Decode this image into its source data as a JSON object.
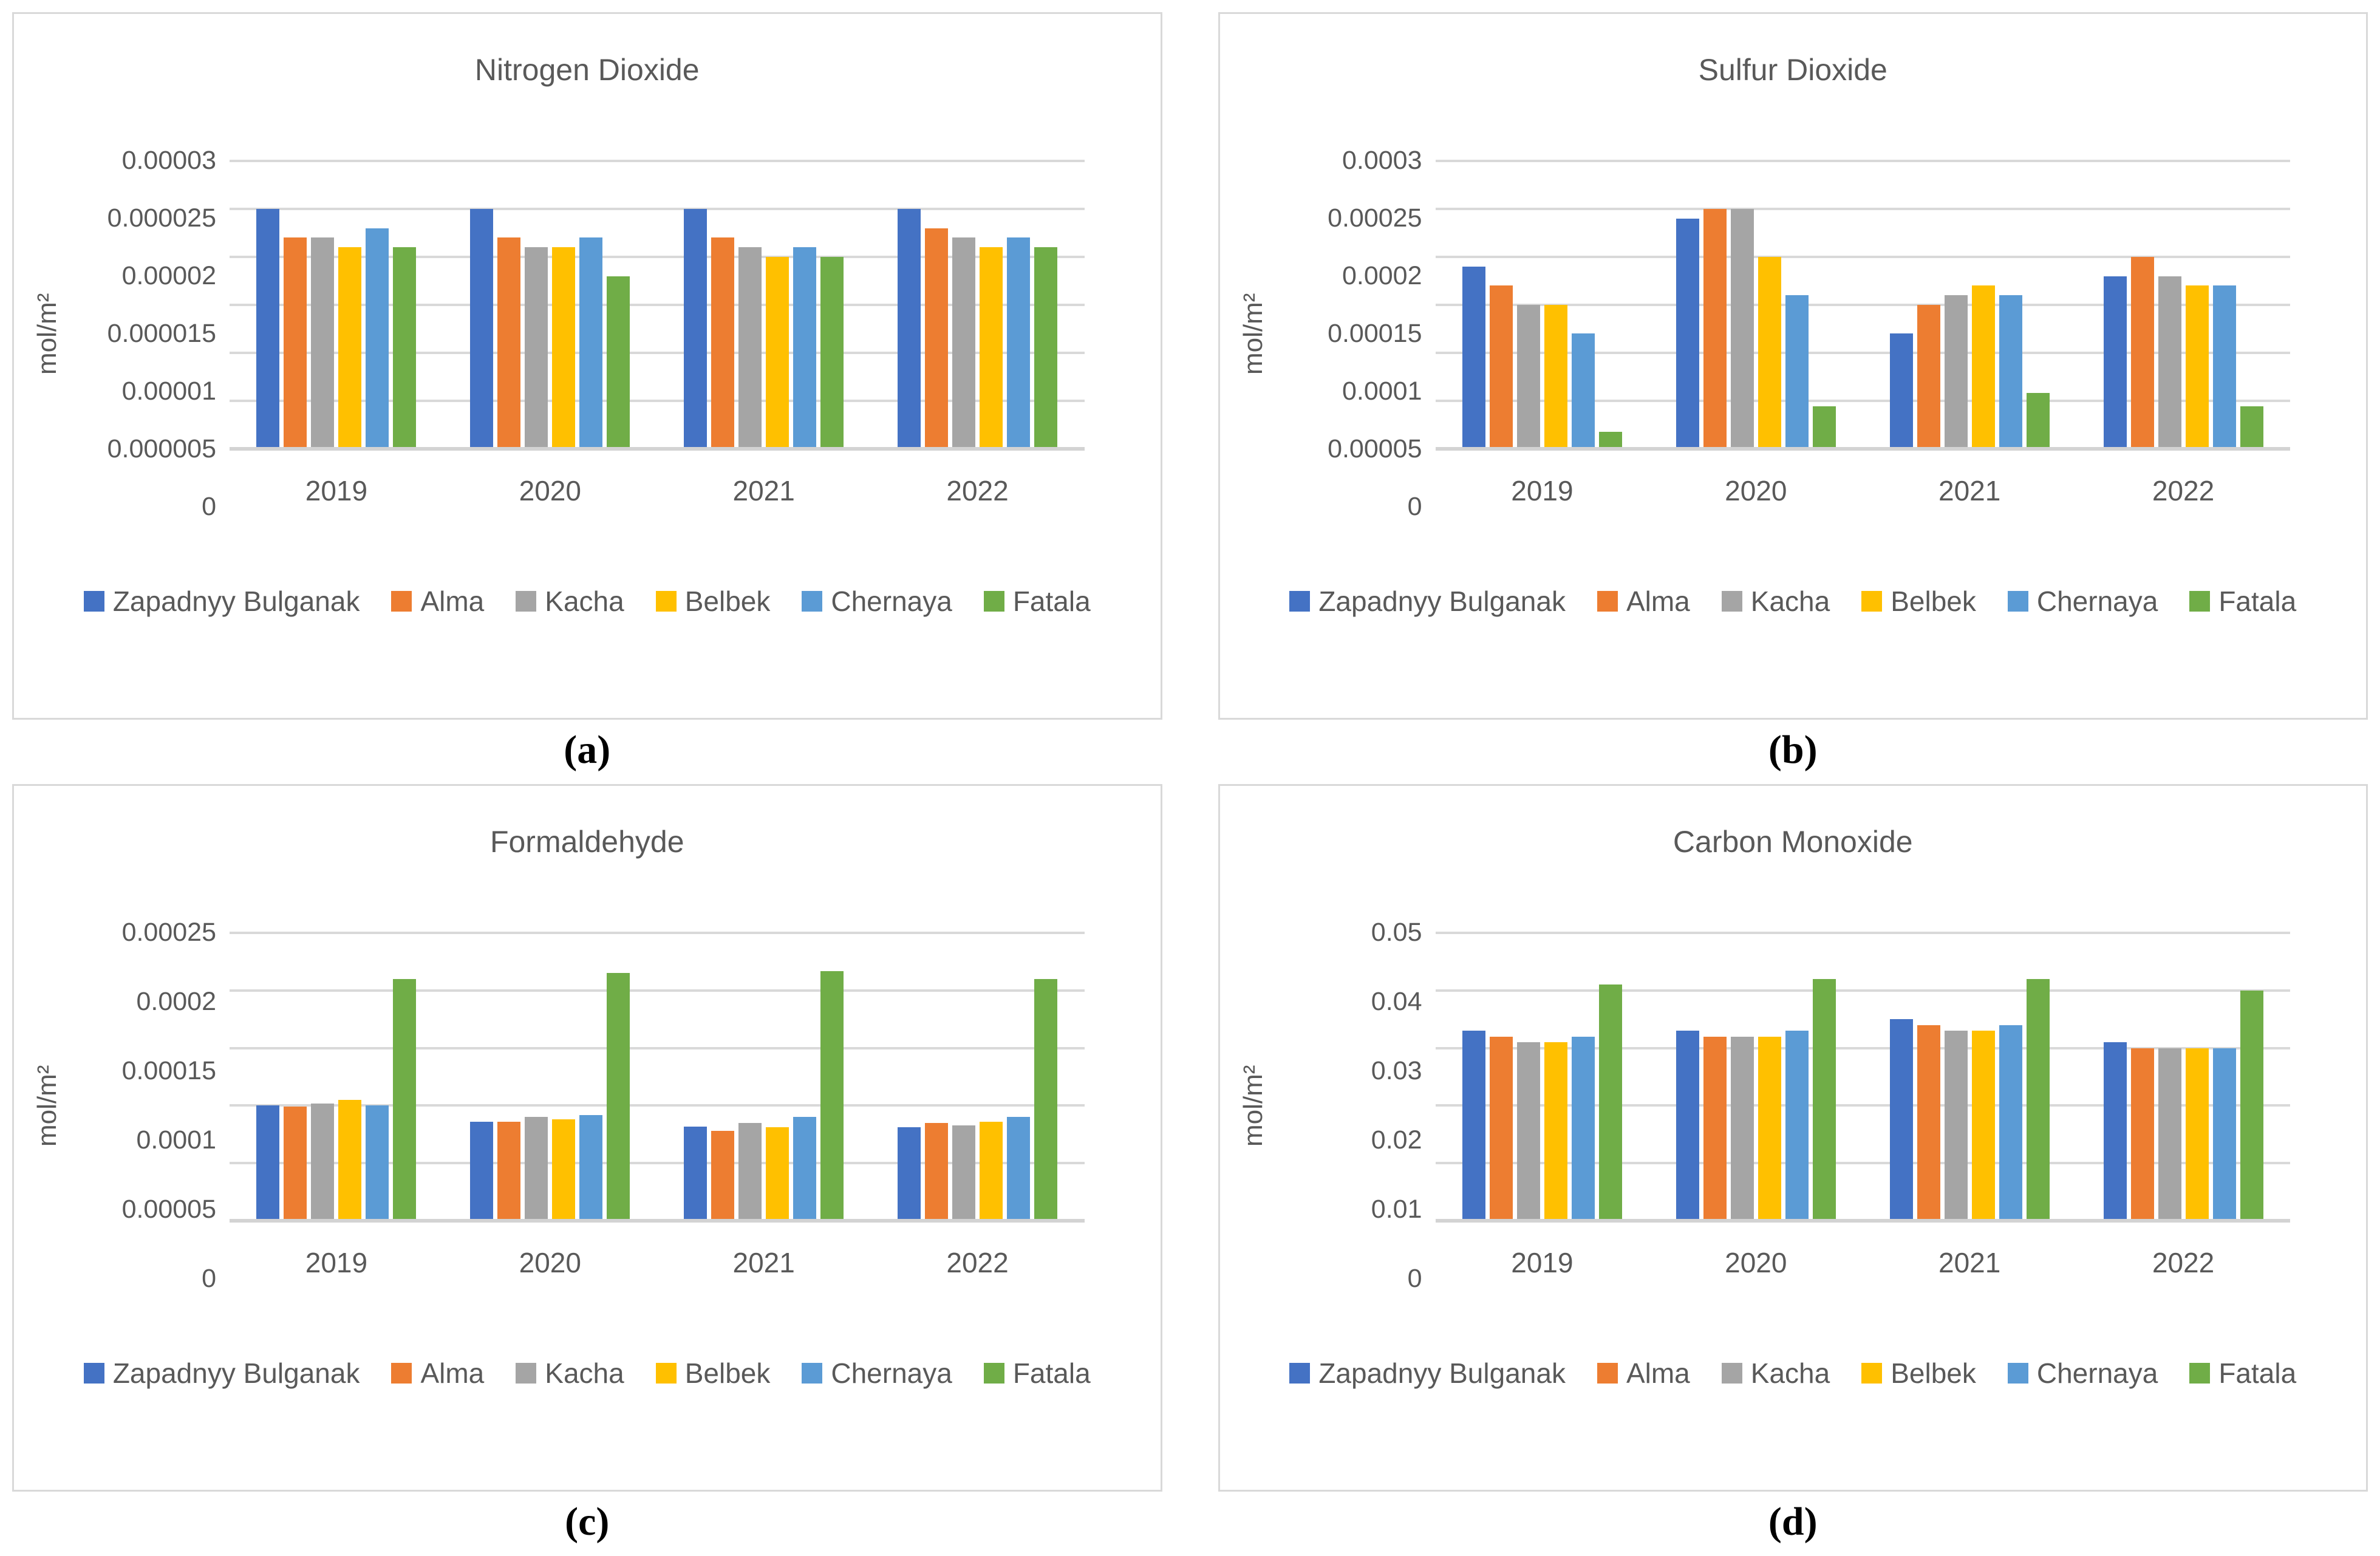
{
  "chart_data": [
    {
      "type": "bar",
      "title": "Nitrogen Dioxide",
      "caption": "(a)",
      "ylabel": "mol/m²",
      "xlabel": "",
      "categories": [
        "2019",
        "2020",
        "2021",
        "2022"
      ],
      "ylim": [
        0,
        3e-05
      ],
      "yticks": [
        0,
        5e-06,
        1e-05,
        1.5e-05,
        2e-05,
        2.5e-05,
        3e-05
      ],
      "ytick_labels": [
        "0",
        "0.000005",
        "0.00001",
        "0.000015",
        "0.00002",
        "0.000025",
        "0.00003"
      ],
      "grid": true,
      "legend_position": "bottom",
      "series": [
        {
          "name": "Zapadnyy Bulganak",
          "color": "#4472C4",
          "values": [
            2.5e-05,
            2.5e-05,
            2.5e-05,
            2.5e-05
          ]
        },
        {
          "name": "Alma",
          "color": "#ED7D31",
          "values": [
            2.2e-05,
            2.2e-05,
            2.2e-05,
            2.3e-05
          ]
        },
        {
          "name": "Kacha",
          "color": "#A5A5A5",
          "values": [
            2.2e-05,
            2.1e-05,
            2.1e-05,
            2.2e-05
          ]
        },
        {
          "name": "Belbek",
          "color": "#FFC000",
          "values": [
            2.1e-05,
            2.1e-05,
            2e-05,
            2.1e-05
          ]
        },
        {
          "name": "Chernaya",
          "color": "#5B9BD5",
          "values": [
            2.3e-05,
            2.2e-05,
            2.1e-05,
            2.2e-05
          ]
        },
        {
          "name": "Fatala",
          "color": "#70AD47",
          "values": [
            2.1e-05,
            1.8e-05,
            2e-05,
            2.1e-05
          ]
        }
      ]
    },
    {
      "type": "bar",
      "title": "Sulfur Dioxide",
      "caption": "(b)",
      "ylabel": "mol/m²",
      "xlabel": "",
      "categories": [
        "2019",
        "2020",
        "2021",
        "2022"
      ],
      "ylim": [
        0,
        0.0003
      ],
      "yticks": [
        0,
        5e-05,
        0.0001,
        0.00015,
        0.0002,
        0.00025,
        0.0003
      ],
      "ytick_labels": [
        "0",
        "0.00005",
        "0.0001",
        "0.00015",
        "0.0002",
        "0.00025",
        "0.0003"
      ],
      "grid": true,
      "legend_position": "bottom",
      "series": [
        {
          "name": "Zapadnyy Bulganak",
          "color": "#4472C4",
          "values": [
            0.00019,
            0.00024,
            0.00012,
            0.00018
          ]
        },
        {
          "name": "Alma",
          "color": "#ED7D31",
          "values": [
            0.00017,
            0.00025,
            0.00015,
            0.0002
          ]
        },
        {
          "name": "Kacha",
          "color": "#A5A5A5",
          "values": [
            0.00015,
            0.00025,
            0.00016,
            0.00018
          ]
        },
        {
          "name": "Belbek",
          "color": "#FFC000",
          "values": [
            0.00015,
            0.0002,
            0.00017,
            0.00017
          ]
        },
        {
          "name": "Chernaya",
          "color": "#5B9BD5",
          "values": [
            0.00012,
            0.00016,
            0.00016,
            0.00017
          ]
        },
        {
          "name": "Fatala",
          "color": "#70AD47",
          "values": [
            1.8e-05,
            4.4e-05,
            5.8e-05,
            4.4e-05
          ]
        }
      ]
    },
    {
      "type": "bar",
      "title": "Formaldehyde",
      "caption": "(c)",
      "ylabel": "mol/m²",
      "xlabel": "",
      "categories": [
        "2019",
        "2020",
        "2021",
        "2022"
      ],
      "ylim": [
        0,
        0.00025
      ],
      "yticks": [
        0,
        5e-05,
        0.0001,
        0.00015,
        0.0002,
        0.00025
      ],
      "ytick_labels": [
        "0",
        "0.00005",
        "0.0001",
        "0.00015",
        "0.0002",
        "0.00025"
      ],
      "grid": true,
      "legend_position": "bottom",
      "series": [
        {
          "name": "Zapadnyy Bulganak",
          "color": "#4472C4",
          "values": [
            0.0001,
            8.6e-05,
            8.2e-05,
            8.1e-05
          ]
        },
        {
          "name": "Alma",
          "color": "#ED7D31",
          "values": [
            9.9e-05,
            8.6e-05,
            7.8e-05,
            8.5e-05
          ]
        },
        {
          "name": "Kacha",
          "color": "#A5A5A5",
          "values": [
            0.000102,
            9e-05,
            8.5e-05,
            8.3e-05
          ]
        },
        {
          "name": "Belbek",
          "color": "#FFC000",
          "values": [
            0.000105,
            8.8e-05,
            8.1e-05,
            8.6e-05
          ]
        },
        {
          "name": "Chernaya",
          "color": "#5B9BD5",
          "values": [
            0.0001,
            9.2e-05,
            9e-05,
            9e-05
          ]
        },
        {
          "name": "Fatala",
          "color": "#70AD47",
          "values": [
            0.00021,
            0.000215,
            0.000217,
            0.00021
          ]
        }
      ]
    },
    {
      "type": "bar",
      "title": "Carbon Monoxide",
      "caption": "(d)",
      "ylabel": "mol/m²",
      "xlabel": "",
      "categories": [
        "2019",
        "2020",
        "2021",
        "2022"
      ],
      "ylim": [
        0,
        0.05
      ],
      "yticks": [
        0,
        0.01,
        0.02,
        0.03,
        0.04,
        0.05
      ],
      "ytick_labels": [
        "0",
        "0.01",
        "0.02",
        "0.03",
        "0.04",
        "0.05"
      ],
      "grid": true,
      "legend_position": "bottom",
      "series": [
        {
          "name": "Zapadnyy Bulganak",
          "color": "#4472C4",
          "values": [
            0.033,
            0.033,
            0.035,
            0.031
          ]
        },
        {
          "name": "Alma",
          "color": "#ED7D31",
          "values": [
            0.032,
            0.032,
            0.034,
            0.03
          ]
        },
        {
          "name": "Kacha",
          "color": "#A5A5A5",
          "values": [
            0.031,
            0.032,
            0.033,
            0.03
          ]
        },
        {
          "name": "Belbek",
          "color": "#FFC000",
          "values": [
            0.031,
            0.032,
            0.033,
            0.03
          ]
        },
        {
          "name": "Chernaya",
          "color": "#5B9BD5",
          "values": [
            0.032,
            0.033,
            0.034,
            0.03
          ]
        },
        {
          "name": "Fatala",
          "color": "#70AD47",
          "values": [
            0.041,
            0.042,
            0.042,
            0.04
          ]
        }
      ]
    }
  ],
  "style": {
    "text_color": "#595959",
    "gridline_color": "#D9D9D9",
    "panel_border_color": "#D9D9D9"
  }
}
